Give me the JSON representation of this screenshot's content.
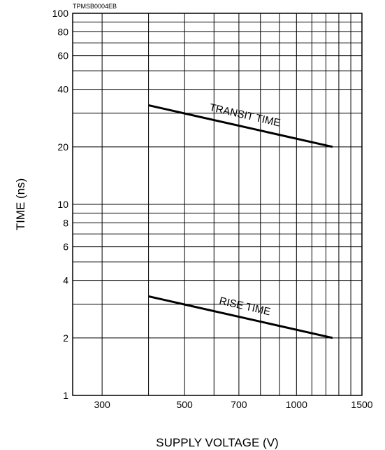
{
  "chart_data": {
    "type": "line",
    "figure_code": "TPMSB0004EB",
    "xlabel": "SUPPLY VOLTAGE (V)",
    "ylabel": "TIME (ns)",
    "xscale": "log",
    "yscale": "log",
    "xlim": [
      250,
      1500
    ],
    "ylim": [
      1,
      100
    ],
    "grid": true,
    "x_ticks": [
      300,
      500,
      700,
      1000,
      1500
    ],
    "y_ticks": [
      1,
      2,
      4,
      6,
      8,
      10,
      20,
      40,
      60,
      80,
      100
    ],
    "x_gridlines": [
      300,
      400,
      500,
      600,
      700,
      800,
      900,
      1000,
      1100,
      1200,
      1300,
      1400,
      1500
    ],
    "y_gridlines": [
      2,
      3,
      4,
      5,
      6,
      7,
      8,
      9,
      10,
      20,
      30,
      40,
      50,
      60,
      70,
      80,
      90
    ],
    "series": [
      {
        "name": "TRANSIT TIME",
        "x": [
          400,
          1250
        ],
        "y": [
          33,
          20
        ]
      },
      {
        "name": "RISE TIME",
        "x": [
          400,
          1250
        ],
        "y": [
          3.3,
          2
        ]
      }
    ],
    "annotations": [
      "TRANSIT TIME",
      "RISE TIME"
    ]
  }
}
